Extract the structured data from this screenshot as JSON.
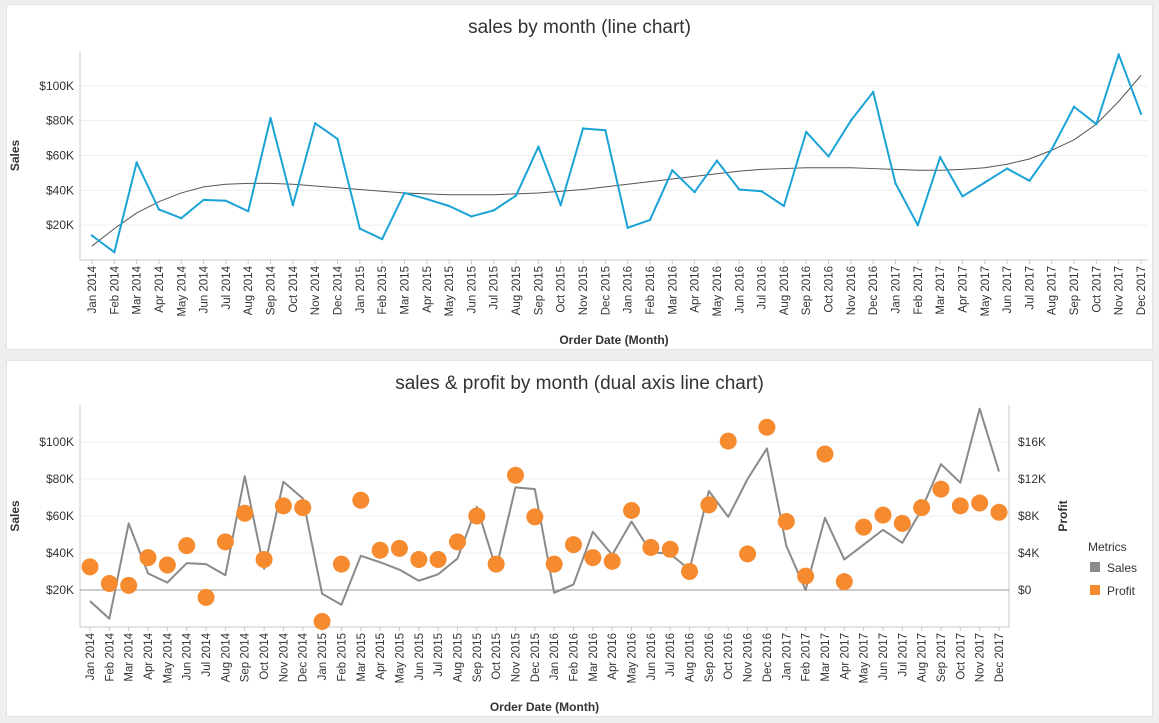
{
  "months": [
    "Jan 2014",
    "Feb 2014",
    "Mar 2014",
    "Apr 2014",
    "May 2014",
    "Jun 2014",
    "Jul 2014",
    "Aug 2014",
    "Sep 2014",
    "Oct 2014",
    "Nov 2014",
    "Dec 2014",
    "Jan 2015",
    "Feb 2015",
    "Mar 2015",
    "Apr 2015",
    "May 2015",
    "Jun 2015",
    "Jul 2015",
    "Aug 2015",
    "Sep 2015",
    "Oct 2015",
    "Nov 2015",
    "Dec 2015",
    "Jan 2016",
    "Feb 2016",
    "Mar 2016",
    "Apr 2016",
    "May 2016",
    "Jun 2016",
    "Jul 2016",
    "Aug 2016",
    "Sep 2016",
    "Oct 2016",
    "Nov 2016",
    "Dec 2016",
    "Jan 2017",
    "Feb 2017",
    "Mar 2017",
    "Apr 2017",
    "May 2017",
    "Jun 2017",
    "Jul 2017",
    "Aug 2017",
    "Sep 2017",
    "Oct 2017",
    "Nov 2017",
    "Dec 2017"
  ],
  "chart_data": [
    {
      "type": "line",
      "title": "sales by month (line chart)",
      "xlabel": "Order Date (Month)",
      "ylabel": "Sales",
      "ylim": [
        0,
        120000
      ],
      "yticks": [
        "$20K",
        "$40K",
        "$60K",
        "$80K",
        "$100K"
      ],
      "grid": true,
      "series": [
        {
          "values": [
            14000,
            4500,
            56000,
            29000,
            24000,
            34500,
            34000,
            28000,
            81500,
            31500,
            78500,
            69500,
            18000,
            12000,
            38500,
            35000,
            31000,
            25000,
            28500,
            37000,
            65000,
            31500,
            75500,
            74500,
            18500,
            23000,
            51500,
            39000,
            57000,
            40500,
            39500,
            31000,
            73500,
            59500,
            80000,
            96500,
            44000,
            20000,
            59000,
            36500,
            44500,
            52500,
            45500,
            63500,
            88000,
            78000,
            118000,
            84000
          ],
          "color": "#1ba3d6"
        }
      ],
      "trendline": [
        8000,
        18000,
        27000,
        33500,
        38500,
        42000,
        43500,
        44000,
        44000,
        43500,
        42500,
        41500,
        40500,
        39500,
        38500,
        38000,
        37500,
        37500,
        37500,
        38000,
        38500,
        39500,
        40500,
        42000,
        43500,
        45000,
        46500,
        48000,
        49500,
        51000,
        52000,
        52500,
        53000,
        53000,
        53000,
        52500,
        52000,
        51500,
        51500,
        52000,
        53000,
        55000,
        58000,
        63000,
        69000,
        78000,
        91000,
        106000
      ],
      "trendline_color": "#555555"
    },
    {
      "type": "line",
      "title": "sales & profit by month (dual axis line chart)",
      "xlabel": "Order Date (Month)",
      "ylabel": "Sales",
      "y2label": "Profit",
      "ylim": [
        0,
        120000
      ],
      "y2lim": [
        -4000,
        20000
      ],
      "yticks": [
        "$20K",
        "$40K",
        "$60K",
        "$80K",
        "$100K"
      ],
      "y2ticks": [
        "$0",
        "$4K",
        "$8K",
        "$12K",
        "$16K"
      ],
      "legend_position": "right",
      "legend_title": "Metrics",
      "series": [
        {
          "name": "Sales",
          "type": "line",
          "axis": "left",
          "color": "#8a8a8a",
          "values": [
            14000,
            4500,
            56000,
            29000,
            24000,
            34500,
            34000,
            28000,
            81500,
            31500,
            78500,
            69500,
            18000,
            12000,
            38500,
            35000,
            31000,
            25000,
            28500,
            37000,
            65000,
            31500,
            75500,
            74500,
            18500,
            23000,
            51500,
            39000,
            57000,
            40500,
            39500,
            31000,
            73500,
            59500,
            80000,
            96500,
            44000,
            20000,
            59000,
            36500,
            44500,
            52500,
            45500,
            63500,
            88000,
            78000,
            118000,
            84000
          ]
        },
        {
          "name": "Profit",
          "type": "scatter",
          "axis": "right",
          "color": "#f58b2e",
          "values": [
            2500,
            700,
            500,
            3500,
            2700,
            4800,
            -800,
            5200,
            8300,
            3300,
            9100,
            8900,
            -3400,
            2800,
            9700,
            4300,
            4500,
            3300,
            3300,
            5200,
            8000,
            2800,
            12400,
            7900,
            2800,
            4900,
            3500,
            3100,
            8600,
            4600,
            4400,
            2000,
            9200,
            16100,
            3900,
            17600,
            7400,
            1500,
            14700,
            900,
            6800,
            8100,
            7200,
            8900,
            10900,
            9100,
            9400,
            8400
          ]
        }
      ]
    }
  ]
}
